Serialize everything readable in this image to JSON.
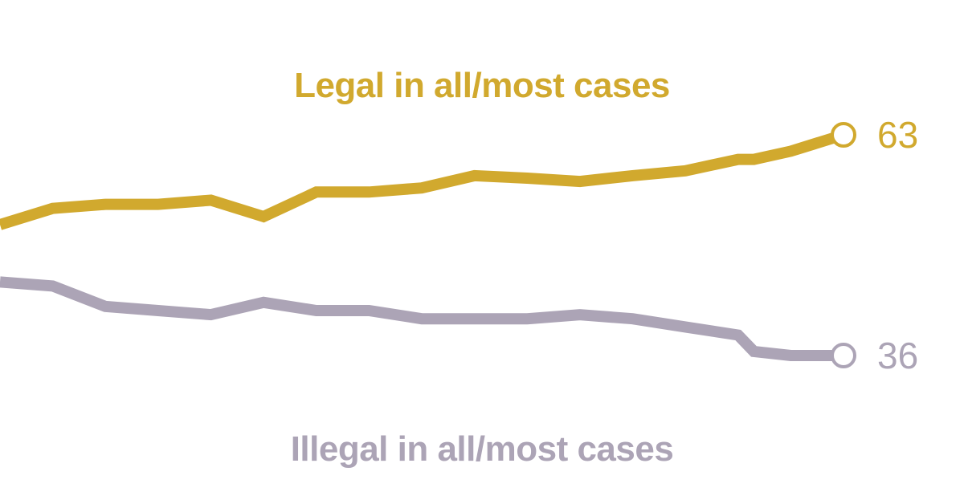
{
  "colors": {
    "legal": "#d1a92e",
    "illegal": "#aca4b6"
  },
  "chart_data": {
    "type": "line",
    "x": [
      0,
      1,
      2,
      3,
      4,
      5,
      6,
      7,
      8,
      9,
      10,
      11,
      12,
      13,
      14,
      14.3,
      15,
      16
    ],
    "series": [
      {
        "name": "Legal in all/most cases",
        "color": "#d1a92e",
        "values": [
          52,
          54,
          54.5,
          54.5,
          55,
          53,
          56,
          56,
          56.5,
          58,
          57.7,
          57.3,
          58,
          58.6,
          60,
          60,
          61,
          63
        ],
        "end_label": "63"
      },
      {
        "name": "Illegal in all/most cases",
        "color": "#aca4b6",
        "values": [
          45,
          44.5,
          42,
          41.5,
          41,
          42.5,
          41.5,
          41.5,
          40.5,
          40.5,
          40.5,
          41,
          40.5,
          39.5,
          38.5,
          36.5,
          36,
          36
        ],
        "end_label": "36"
      }
    ],
    "xlabel": "",
    "ylabel": "",
    "grid": false,
    "legend": "none"
  }
}
